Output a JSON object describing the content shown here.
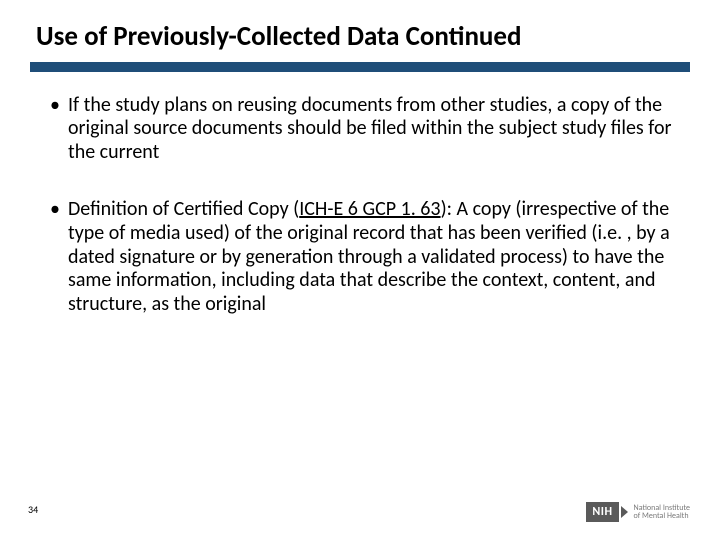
{
  "slide": {
    "title": "Use of Previously-Collected Data Continued",
    "underline_color": "#1f4e79",
    "background_color": "#ffffff",
    "title_fontsize": 27,
    "body_fontsize": 20,
    "bullets": [
      {
        "prefix": "If the study plans on reusing documents from other studies, a copy of the original source documents should be filed within the subject study files for the current",
        "link": "",
        "suffix": ""
      },
      {
        "prefix": "Definition of Certified Copy (",
        "link": "ICH-E 6 GCP 1. 63",
        "suffix": "): A copy (irrespective of the type of media used) of the original record that has been verified (i.e. , by a dated signature or by generation through a validated process) to have the same information, including data that describe the context, content, and structure, as the original"
      }
    ],
    "page_number": "34"
  },
  "footer": {
    "badge": "NIH",
    "org_line1": "National Institute",
    "org_line2": "of Mental Health"
  }
}
